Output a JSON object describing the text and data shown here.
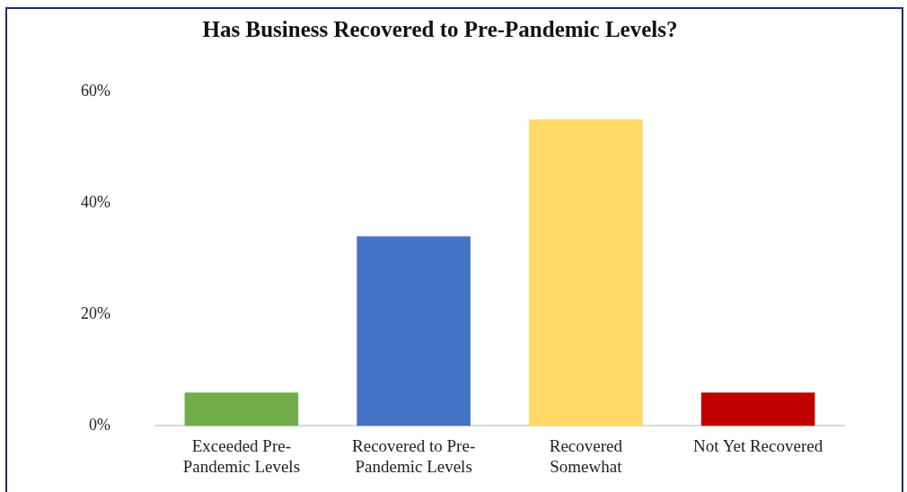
{
  "chart_data": {
    "type": "bar",
    "title": "Has Business Recovered to Pre-Pandemic Levels?",
    "categories": [
      "Exceeded Pre-Pandemic Levels",
      "Recovered to Pre-Pandemic Levels",
      "Recovered Somewhat",
      "Not Yet Recovered"
    ],
    "values": [
      6,
      34,
      55,
      6
    ],
    "colors": [
      "#70ad47",
      "#4472c4",
      "#ffd966",
      "#c00000"
    ],
    "ylim": [
      0,
      60
    ],
    "yticks": [
      {
        "value": 0,
        "label": "0%"
      },
      {
        "value": 20,
        "label": "20%"
      },
      {
        "value": 40,
        "label": "40%"
      },
      {
        "value": 60,
        "label": "60%"
      }
    ],
    "grid": false,
    "legend": false
  }
}
